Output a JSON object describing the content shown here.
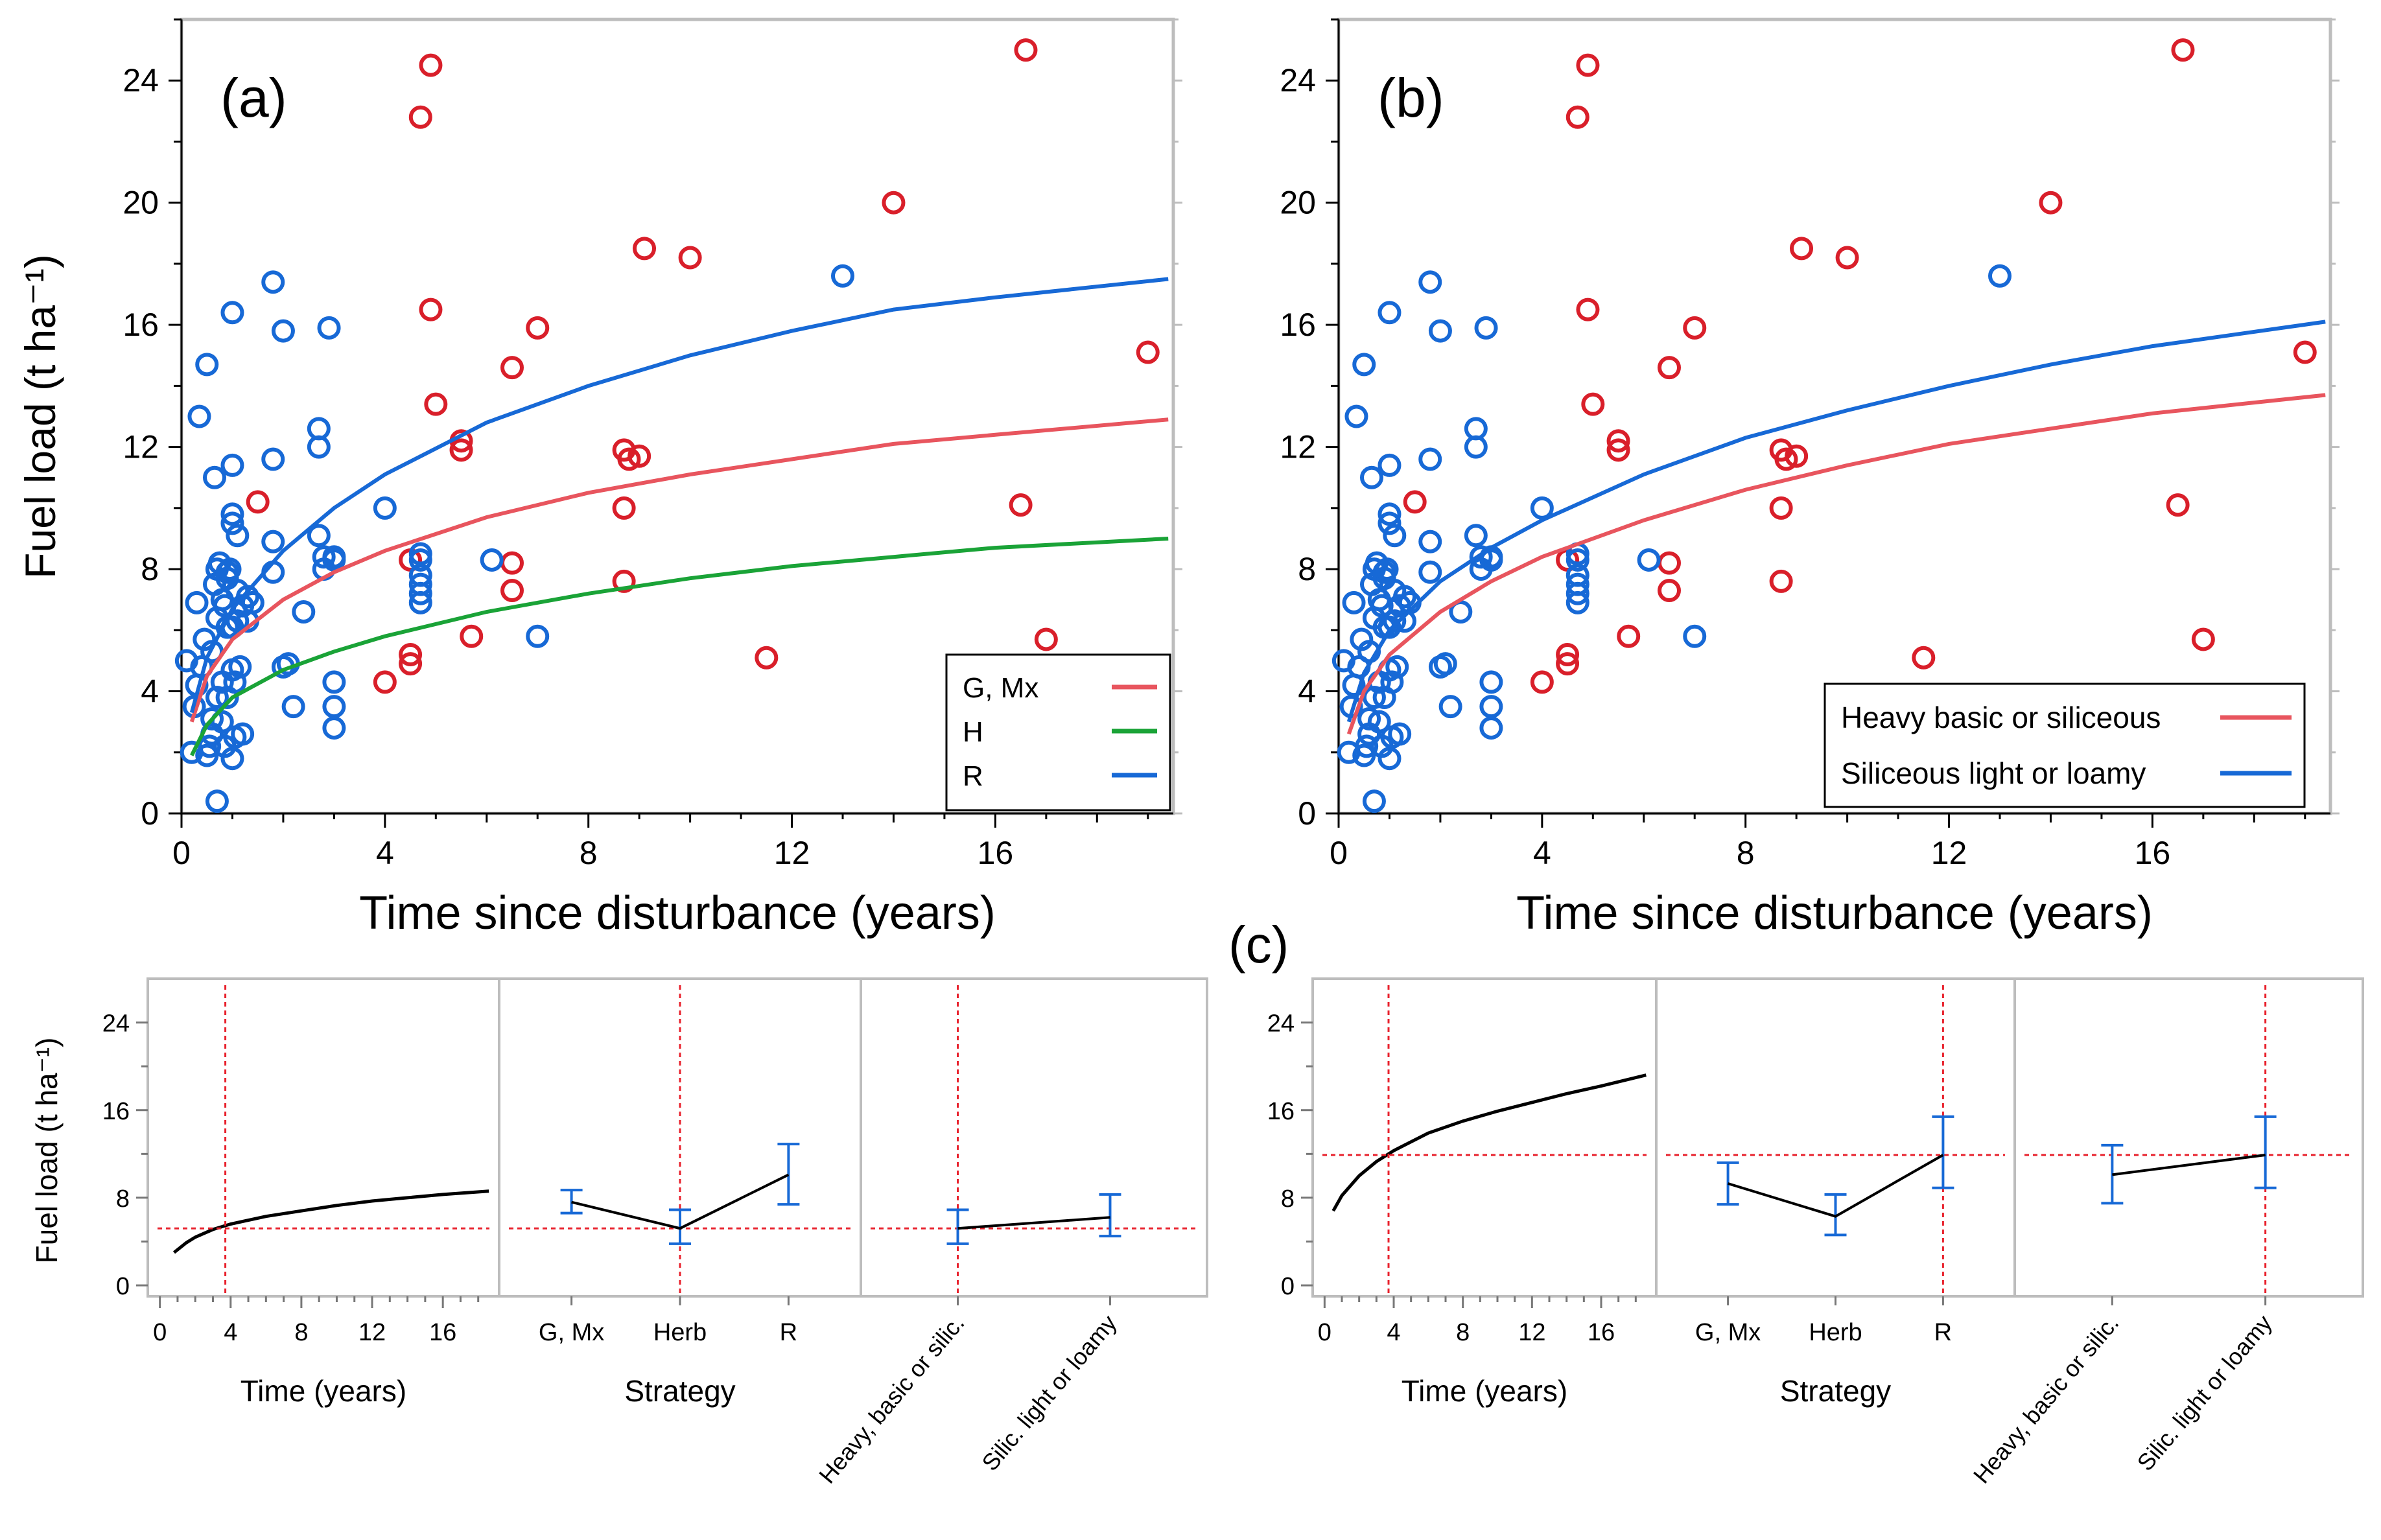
{
  "chart_data": [
    {
      "id": "a",
      "type": "scatter",
      "panel_label": "(a)",
      "xlabel": "Time since disturbance (years)",
      "ylabel": "Fuel load (t ha⁻¹)",
      "xlim": [
        0,
        19.5
      ],
      "ylim": [
        0,
        26
      ],
      "xticks": [
        "0",
        "4",
        "8",
        "12",
        "16"
      ],
      "yticks": [
        "0",
        "4",
        "8",
        "12",
        "16",
        "20",
        "24"
      ],
      "legend": {
        "position": "bottom-right",
        "entries": [
          {
            "label": "G, Mx",
            "color": "#e8555e"
          },
          {
            "label": "H",
            "color": "#1aa337"
          },
          {
            "label": "R",
            "color": "#1769d6"
          }
        ]
      },
      "curves": [
        {
          "name": "G, Mx",
          "color": "#e8555e",
          "x": [
            0.2,
            0.5,
            1,
            2,
            3,
            4,
            6,
            8,
            10,
            12,
            14,
            16,
            19.4
          ],
          "y": [
            3.0,
            4.5,
            5.7,
            7.0,
            7.9,
            8.6,
            9.7,
            10.5,
            11.1,
            11.6,
            12.1,
            12.4,
            12.9
          ]
        },
        {
          "name": "H",
          "color": "#1aa337",
          "x": [
            0.2,
            0.5,
            1,
            2,
            3,
            4,
            6,
            8,
            10,
            12,
            14,
            16,
            19.4
          ],
          "y": [
            1.9,
            2.9,
            3.8,
            4.7,
            5.3,
            5.8,
            6.6,
            7.2,
            7.7,
            8.1,
            8.4,
            8.7,
            9.0
          ]
        },
        {
          "name": "R",
          "color": "#1769d6",
          "x": [
            0.2,
            0.5,
            1,
            2,
            3,
            4,
            6,
            8,
            10,
            12,
            14,
            16,
            19.4
          ],
          "y": [
            3.3,
            5.1,
            6.7,
            8.6,
            10.0,
            11.1,
            12.8,
            14.0,
            15.0,
            15.8,
            16.5,
            16.9,
            17.5
          ]
        }
      ],
      "series": [
        {
          "name": "red points",
          "color": "#d91f2a",
          "x": [
            1.5,
            4.0,
            4.5,
            4.5,
            4.5,
            4.7,
            4.9,
            4.9,
            5.0,
            5.5,
            5.5,
            5.7,
            6.5,
            6.5,
            6.5,
            7.0,
            8.7,
            8.7,
            8.7,
            8.8,
            9.0,
            9.1,
            10.0,
            11.5,
            14.0,
            16.5,
            16.6,
            17.0,
            19.0
          ],
          "y": [
            10.2,
            4.3,
            5.2,
            4.9,
            8.3,
            22.8,
            24.5,
            16.5,
            13.4,
            12.2,
            11.9,
            5.8,
            14.6,
            8.2,
            7.3,
            15.9,
            11.9,
            10.0,
            7.6,
            11.6,
            11.7,
            18.5,
            18.2,
            5.1,
            20.0,
            10.1,
            25.0,
            5.7,
            15.1
          ]
        },
        {
          "name": "blue points",
          "color": "#1769d6",
          "x": [
            0.1,
            0.2,
            0.25,
            0.3,
            0.3,
            0.35,
            0.4,
            0.45,
            0.5,
            0.5,
            0.55,
            0.6,
            0.6,
            0.65,
            0.65,
            0.7,
            0.7,
            0.7,
            0.75,
            0.8,
            0.8,
            0.8,
            0.85,
            0.85,
            0.9,
            0.9,
            0.9,
            0.95,
            1.0,
            1.0,
            1.0,
            1.0,
            1.0,
            1.0,
            1.05,
            1.05,
            1.1,
            1.1,
            1.1,
            1.15,
            1.2,
            1.2,
            1.3,
            1.3,
            1.4,
            1.8,
            1.8,
            1.8,
            1.8,
            2.0,
            2.0,
            2.1,
            2.2,
            2.4,
            2.7,
            2.7,
            2.7,
            2.8,
            2.8,
            2.9,
            3.0,
            3.0,
            3.0,
            3.0,
            3.0,
            4.0,
            4.7,
            4.7,
            4.7,
            4.7,
            4.7,
            4.7,
            6.1,
            7.0,
            13.0,
            0.6,
            0.7,
            0.9,
            1.0
          ],
          "y": [
            5.0,
            2.0,
            3.5,
            4.2,
            6.9,
            13.0,
            4.8,
            5.7,
            14.7,
            1.9,
            2.2,
            5.3,
            2.6,
            11.0,
            7.5,
            8.0,
            6.4,
            0.4,
            8.2,
            3.0,
            4.3,
            7.0,
            6.8,
            2.2,
            7.9,
            3.8,
            6.1,
            8.0,
            16.4,
            11.4,
            9.8,
            9.5,
            4.7,
            1.8,
            4.3,
            2.5,
            9.1,
            7.3,
            6.3,
            4.8,
            6.8,
            2.6,
            7.1,
            6.3,
            6.9,
            17.4,
            11.6,
            8.9,
            7.9,
            15.8,
            4.8,
            4.9,
            3.5,
            6.6,
            12.6,
            12.0,
            9.1,
            8.0,
            8.4,
            15.9,
            4.3,
            3.5,
            2.8,
            8.4,
            8.3,
            10.0,
            8.5,
            7.8,
            7.5,
            7.2,
            6.9,
            8.3,
            8.3,
            5.8,
            17.6,
            3.1,
            3.8,
            7.7,
            6.1
          ]
        }
      ]
    },
    {
      "id": "b",
      "type": "scatter",
      "panel_label": "(b)",
      "xlabel": "Time since disturbance (years)",
      "ylabel": "",
      "xlim": [
        0,
        19.5
      ],
      "ylim": [
        0,
        26
      ],
      "xticks": [
        "0",
        "4",
        "8",
        "12",
        "16"
      ],
      "yticks": [
        "0",
        "4",
        "8",
        "12",
        "16",
        "20",
        "24"
      ],
      "legend": {
        "position": "bottom-right",
        "entries": [
          {
            "label": "Heavy  basic or siliceous",
            "color": "#e8555e"
          },
          {
            "label": "Siliceous light or loamy",
            "color": "#1769d6"
          }
        ]
      },
      "curves": [
        {
          "name": "Heavy basic or siliceous",
          "color": "#e8555e",
          "x": [
            0.2,
            0.5,
            1,
            2,
            3,
            4,
            6,
            8,
            10,
            12,
            14,
            16,
            19.4
          ],
          "y": [
            2.6,
            4.0,
            5.2,
            6.6,
            7.6,
            8.4,
            9.6,
            10.6,
            11.4,
            12.1,
            12.6,
            13.1,
            13.7
          ]
        },
        {
          "name": "Siliceous light or loamy",
          "color": "#1769d6",
          "x": [
            0.2,
            0.5,
            1,
            2,
            3,
            4,
            6,
            8,
            10,
            12,
            14,
            16,
            19.4
          ],
          "y": [
            3.0,
            4.6,
            6.0,
            7.6,
            8.7,
            9.6,
            11.1,
            12.3,
            13.2,
            14.0,
            14.7,
            15.3,
            16.1
          ]
        }
      ],
      "series": [
        {
          "name": "red points",
          "color": "#d91f2a",
          "x": [
            1.5,
            4.0,
            4.5,
            4.5,
            4.5,
            4.7,
            4.9,
            4.9,
            5.0,
            5.5,
            5.5,
            5.7,
            6.5,
            6.5,
            6.5,
            7.0,
            8.7,
            8.7,
            8.7,
            8.8,
            9.0,
            9.1,
            10.0,
            11.5,
            14.0,
            16.5,
            16.6,
            17.0,
            19.0
          ],
          "y": [
            10.2,
            4.3,
            5.2,
            4.9,
            8.3,
            22.8,
            24.5,
            16.5,
            13.4,
            12.2,
            11.9,
            5.8,
            14.6,
            8.2,
            7.3,
            15.9,
            11.9,
            10.0,
            7.6,
            11.6,
            11.7,
            18.5,
            18.2,
            5.1,
            20.0,
            10.1,
            25.0,
            5.7,
            15.1
          ]
        },
        {
          "name": "blue points",
          "color": "#1769d6",
          "x": [
            0.1,
            0.2,
            0.25,
            0.3,
            0.3,
            0.35,
            0.4,
            0.45,
            0.5,
            0.5,
            0.55,
            0.6,
            0.6,
            0.65,
            0.65,
            0.7,
            0.7,
            0.7,
            0.75,
            0.8,
            0.8,
            0.8,
            0.85,
            0.85,
            0.9,
            0.9,
            0.9,
            0.95,
            1.0,
            1.0,
            1.0,
            1.0,
            1.0,
            1.0,
            1.05,
            1.05,
            1.1,
            1.1,
            1.1,
            1.15,
            1.2,
            1.2,
            1.3,
            1.3,
            1.4,
            1.8,
            1.8,
            1.8,
            1.8,
            2.0,
            2.0,
            2.1,
            2.2,
            2.4,
            2.7,
            2.7,
            2.7,
            2.8,
            2.8,
            2.9,
            3.0,
            3.0,
            3.0,
            3.0,
            3.0,
            4.0,
            4.7,
            4.7,
            4.7,
            4.7,
            4.7,
            4.7,
            6.1,
            7.0,
            13.0,
            0.6,
            0.7,
            0.9,
            1.0
          ],
          "y": [
            5.0,
            2.0,
            3.5,
            4.2,
            6.9,
            13.0,
            4.8,
            5.7,
            14.7,
            1.9,
            2.2,
            5.3,
            2.6,
            11.0,
            7.5,
            8.0,
            6.4,
            0.4,
            8.2,
            3.0,
            4.3,
            7.0,
            6.8,
            2.2,
            7.9,
            3.8,
            6.1,
            8.0,
            16.4,
            11.4,
            9.8,
            9.5,
            4.7,
            1.8,
            4.3,
            2.5,
            9.1,
            7.3,
            6.3,
            4.8,
            6.8,
            2.6,
            7.1,
            6.3,
            6.9,
            17.4,
            11.6,
            8.9,
            7.9,
            15.8,
            4.8,
            4.9,
            3.5,
            6.6,
            12.6,
            12.0,
            9.1,
            8.0,
            8.4,
            15.9,
            4.3,
            3.5,
            2.8,
            8.4,
            8.3,
            10.0,
            8.5,
            7.8,
            7.5,
            7.2,
            6.9,
            8.3,
            8.3,
            5.8,
            17.6,
            3.1,
            3.8,
            7.7,
            6.1
          ]
        }
      ]
    },
    {
      "id": "c-left",
      "type": "line",
      "panel_label": "",
      "ylabel": "Fuel load (t ha⁻¹)",
      "ylim": [
        -1,
        28
      ],
      "yticks": [
        "0",
        "8",
        "16",
        "24"
      ],
      "reference_line_y": 5.2,
      "time_panel": {
        "xlabel": "Time (years)",
        "xlim": [
          -0.5,
          19
        ],
        "xticks": [
          "0",
          "4",
          "8",
          "12",
          "16"
        ],
        "curve": {
          "x": [
            0.8,
            1.5,
            2,
            3,
            4,
            6,
            8,
            10,
            12,
            14,
            16,
            18.6
          ],
          "y": [
            3.0,
            3.9,
            4.4,
            5.1,
            5.6,
            6.3,
            6.8,
            7.3,
            7.7,
            8.0,
            8.3,
            8.6
          ]
        },
        "reference_x": 3.7
      },
      "strategy_panel": {
        "xlabel": "Strategy",
        "categories": [
          "G, Mx",
          "Herb",
          "R"
        ],
        "values": [
          7.6,
          5.2,
          10.1
        ],
        "ci_low": [
          6.6,
          3.8,
          7.4
        ],
        "ci_high": [
          8.7,
          6.9,
          12.9
        ],
        "reference_category": 1
      },
      "substrate_panel": {
        "categories": [
          "Heavy, basic or silic.",
          "Silic. light or loamy"
        ],
        "values": [
          5.2,
          6.2
        ],
        "ci_low": [
          3.8,
          4.5
        ],
        "ci_high": [
          6.9,
          8.3
        ],
        "reference_category": 0
      }
    },
    {
      "id": "c-right",
      "type": "line",
      "panel_label": "(c)",
      "ylabel": "",
      "ylim": [
        -1,
        28
      ],
      "yticks": [
        "0",
        "8",
        "16",
        "24"
      ],
      "reference_line_y": 11.9,
      "time_panel": {
        "xlabel": "Time (years)",
        "xlim": [
          -0.5,
          19
        ],
        "xticks": [
          "0",
          "4",
          "8",
          "12",
          "16"
        ],
        "curve": {
          "x": [
            0.5,
            1,
            2,
            3,
            4,
            6,
            8,
            10,
            12,
            14,
            16,
            18.6
          ],
          "y": [
            6.8,
            8.2,
            10.0,
            11.3,
            12.3,
            13.9,
            15.0,
            15.9,
            16.7,
            17.5,
            18.2,
            19.2
          ]
        },
        "reference_x": 3.7
      },
      "strategy_panel": {
        "xlabel": "Strategy",
        "categories": [
          "G, Mx",
          "Herb",
          "R"
        ],
        "values": [
          9.3,
          6.3,
          11.9
        ],
        "ci_low": [
          7.4,
          4.6,
          8.9
        ],
        "ci_high": [
          11.2,
          8.3,
          15.4
        ],
        "reference_category": 2
      },
      "substrate_panel": {
        "categories": [
          "Heavy, basic or silic.",
          "Silic. light or loamy"
        ],
        "values": [
          10.1,
          11.9
        ],
        "ci_low": [
          7.5,
          8.9
        ],
        "ci_high": [
          12.8,
          15.4
        ],
        "reference_category": 1
      }
    }
  ]
}
